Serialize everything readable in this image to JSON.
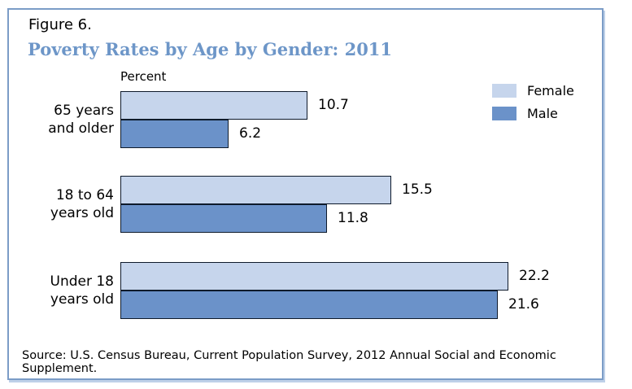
{
  "figure_label": "Figure 6.",
  "title": "Poverty Rates by Age by Gender: 2011",
  "axis_note": "Percent",
  "source": "Source: U.S. Census Bureau, Current Population Survey, 2012 Annual Social and Economic Supplement.",
  "colors": {
    "title_text": "#6d96c8",
    "frame_border": "#7b9cc7",
    "frame_shadow": "#bed0e8",
    "bar_outline": "#0e1a2b",
    "female": "#c6d5ec",
    "male": "#6b92c9"
  },
  "legend": [
    {
      "label": "Female",
      "color": "#c6d5ec"
    },
    {
      "label": "Male",
      "color": "#6b92c9"
    }
  ],
  "chart_data": {
    "type": "bar",
    "orientation": "horizontal",
    "title": "Poverty Rates by Age by Gender: 2011",
    "xlabel": "Percent",
    "xlim": [
      0,
      24
    ],
    "grid": false,
    "legend_position": "top-right",
    "categories": [
      "65 years\nand older",
      "18 to 64\nyears old",
      "Under 18\nyears old"
    ],
    "series": [
      {
        "name": "Female",
        "color": "#c6d5ec",
        "values": [
          10.7,
          15.5,
          22.2
        ]
      },
      {
        "name": "Male",
        "color": "#6b92c9",
        "values": [
          6.2,
          11.8,
          21.6
        ]
      }
    ]
  }
}
